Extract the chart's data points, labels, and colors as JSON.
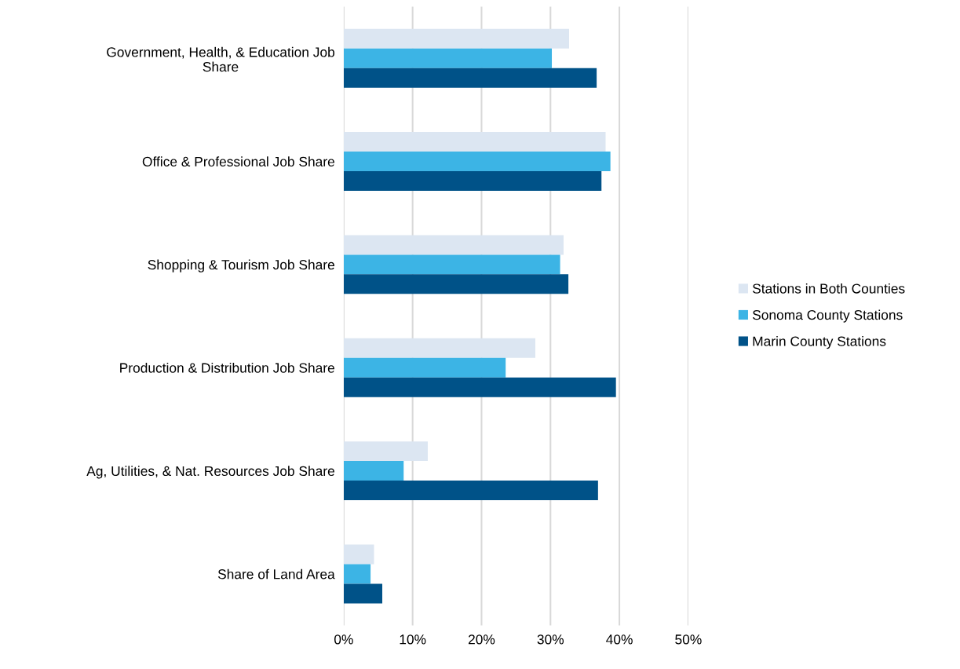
{
  "chart_data": {
    "type": "bar",
    "orientation": "horizontal",
    "categories": [
      "Government, Health, & Education Job\nShare",
      "Office & Professional Job Share",
      "Shopping & Tourism Job Share",
      "Production & Distribution Job Share",
      "Ag, Utilities, & Nat. Resources Job Share",
      "Share of Land Area"
    ],
    "series": [
      {
        "name": "Stations in Both Counties",
        "color": "#dce6f2",
        "values": [
          32.7,
          38.0,
          31.9,
          27.8,
          12.2,
          4.4
        ]
      },
      {
        "name": "Sonoma County Stations",
        "color": "#3cb4e5",
        "values": [
          30.2,
          38.7,
          31.4,
          23.5,
          8.7,
          3.9
        ]
      },
      {
        "name": "Marin County Stations",
        "color": "#005288",
        "values": [
          36.7,
          37.4,
          32.6,
          39.5,
          36.9,
          5.6
        ]
      }
    ],
    "xlim": [
      0,
      50
    ],
    "xticks": [
      {
        "value": 0,
        "label": "0%"
      },
      {
        "value": 10,
        "label": "10%"
      },
      {
        "value": 20,
        "label": "20%"
      },
      {
        "value": 30,
        "label": "30%"
      },
      {
        "value": 40,
        "label": "40%"
      },
      {
        "value": 50,
        "label": "50%"
      }
    ],
    "grid": "x",
    "legend": "right"
  }
}
